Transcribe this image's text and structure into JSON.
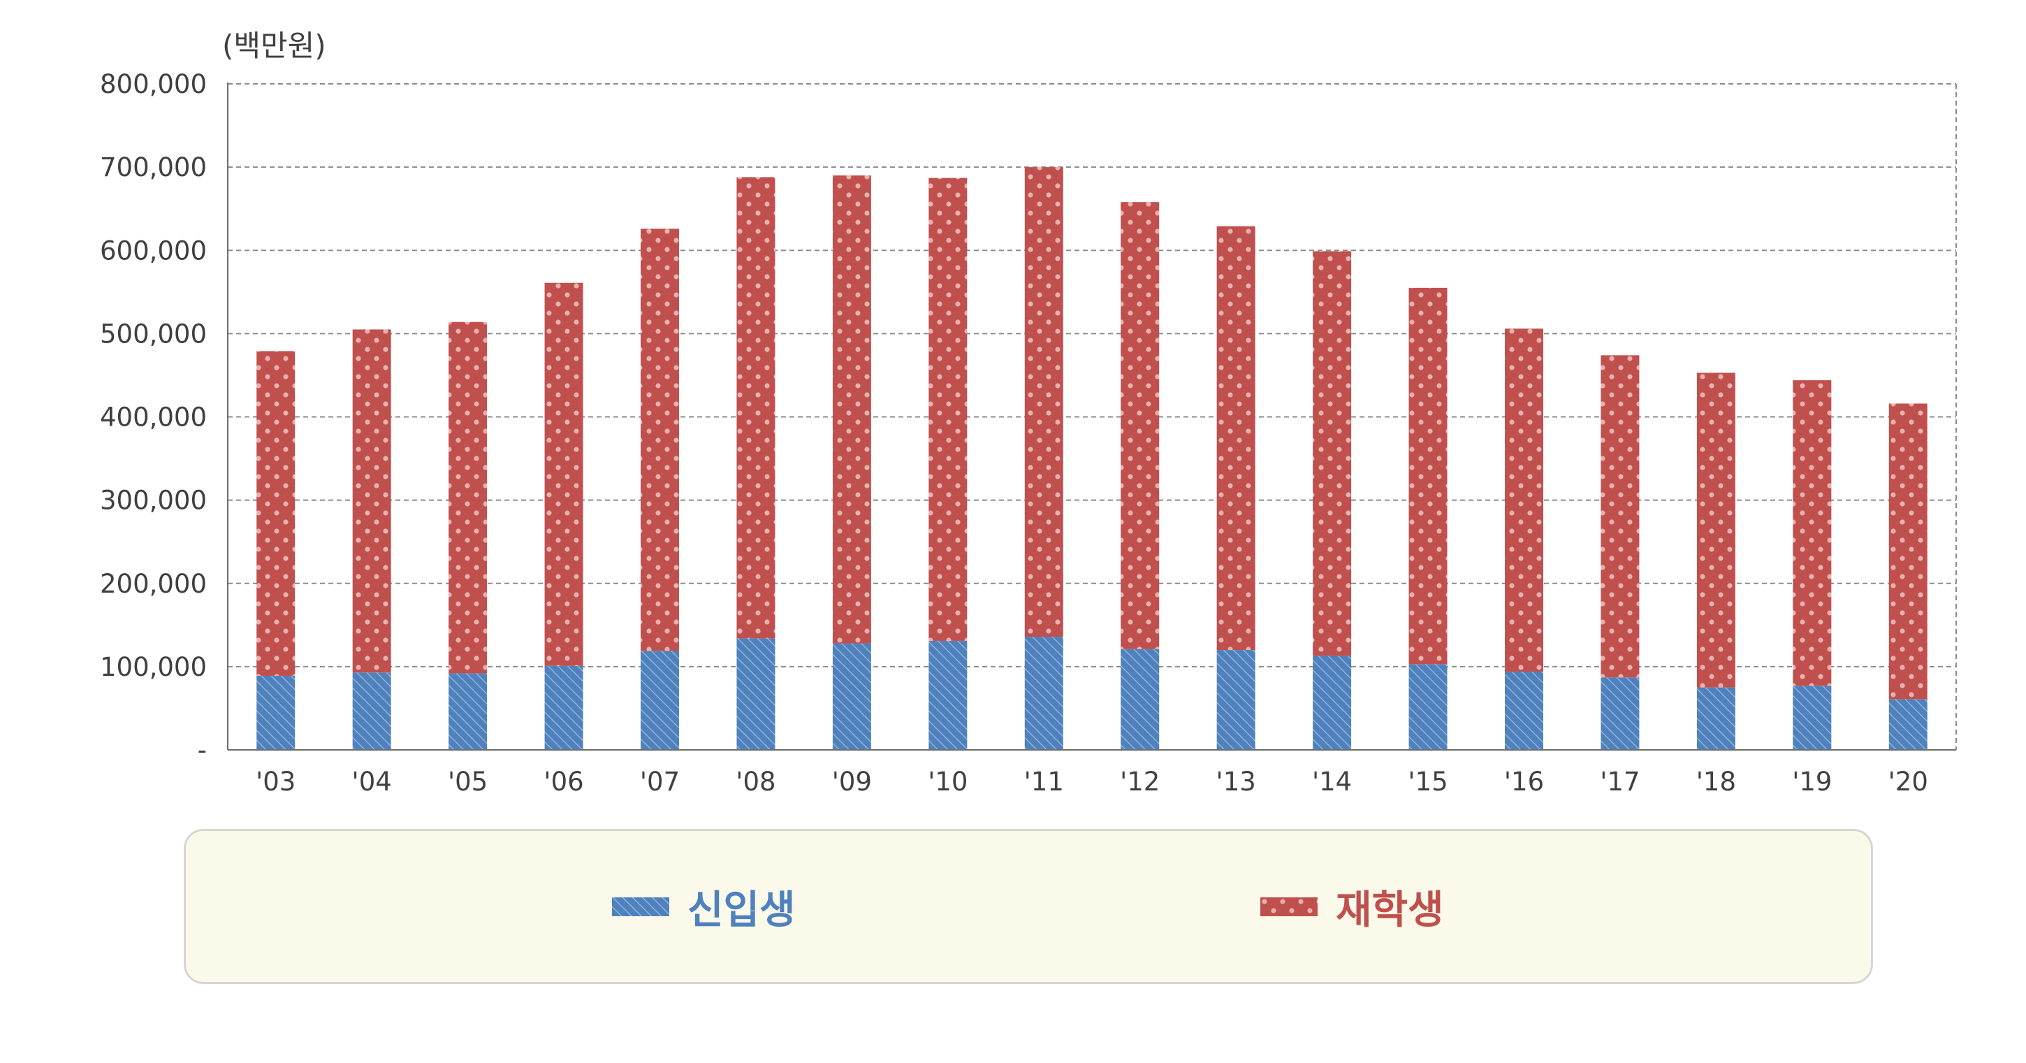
{
  "chart_data": {
    "type": "bar",
    "stacked": true,
    "unit_label": "(백만원)",
    "categories": [
      "'03",
      "'04",
      "'05",
      "'06",
      "'07",
      "'08",
      "'09",
      "'10",
      "'11",
      "'12",
      "'13",
      "'14",
      "'15",
      "'16",
      "'17",
      "'18",
      "'19",
      "'20"
    ],
    "series": [
      {
        "name": "신입생",
        "color": "#4f81bd",
        "values": [
          89000,
          93000,
          92000,
          101000,
          119000,
          134000,
          128000,
          131000,
          136000,
          121000,
          120000,
          113000,
          103000,
          94000,
          87000,
          75000,
          77000,
          61000
        ]
      },
      {
        "name": "재학생",
        "color": "#c0504d",
        "values": [
          390000,
          412000,
          422000,
          460000,
          507000,
          554000,
          562000,
          556000,
          564000,
          537000,
          509000,
          486000,
          452000,
          412000,
          387000,
          378000,
          367000,
          355000
        ]
      }
    ],
    "ylim": [
      0,
      800000
    ],
    "yticks": [
      "-",
      "100,000",
      "200,000",
      "300,000",
      "400,000",
      "500,000",
      "600,000",
      "700,000",
      "800,000"
    ],
    "ytick_values": [
      0,
      100000,
      200000,
      300000,
      400000,
      500000,
      600000,
      700000,
      800000
    ],
    "grid": true,
    "legend_position": "bottom"
  }
}
